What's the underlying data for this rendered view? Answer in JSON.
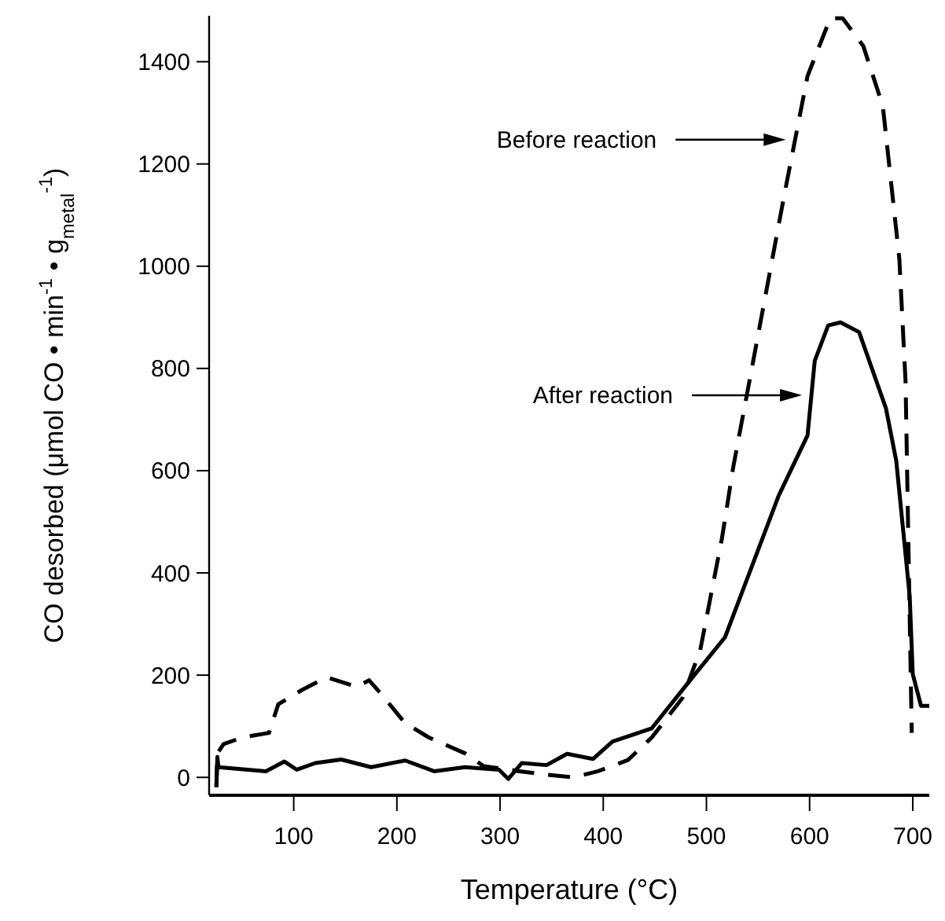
{
  "chart_data": {
    "type": "line",
    "xlabel": "Temperature (°C)",
    "ylabel": "CO desorbed (μmol CO • min$^{-1}$ • g$_{metal}$$^{-1}$)",
    "xlim": [
      18,
      716
    ],
    "ylim": [
      -35,
      1490
    ],
    "xticks": [
      100,
      200,
      300,
      400,
      500,
      600,
      700
    ],
    "yticks": [
      0,
      200,
      400,
      600,
      800,
      1000,
      1200,
      1400
    ],
    "grid": false,
    "series": [
      {
        "color": "#000000",
        "line_style": "dashed",
        "x": [
          25,
          26,
          32,
          50,
          76,
          85,
          108,
          132,
          161,
          173,
          184,
          208,
          231,
          266,
          284,
          319,
          342,
          371,
          395,
          424,
          447,
          477,
          494,
          515,
          526,
          544,
          576,
          598,
          620,
          632,
          652,
          671,
          687,
          693,
          699
        ],
        "values": [
          -19,
          47,
          65,
          78,
          87,
          143,
          171,
          196,
          177,
          190,
          165,
          106,
          78,
          47,
          22,
          12,
          6,
          0,
          12,
          34,
          78,
          156,
          249,
          467,
          607,
          800,
          1145,
          1372,
          1485,
          1485,
          1431,
          1313,
          1014,
          775,
          87
        ]
      },
      {
        "color": "#000000",
        "line_style": "solid",
        "x": [
          25,
          26,
          27,
          73,
          91,
          103,
          121,
          146,
          175,
          208,
          236,
          266,
          299,
          308,
          321,
          345,
          365,
          390,
          409,
          447,
          487,
          518,
          570,
          598,
          605,
          618,
          630,
          648,
          674,
          684,
          697,
          700,
          708,
          716
        ],
        "values": [
          -19,
          40,
          20,
          12,
          31,
          15,
          28,
          35,
          20,
          33,
          12,
          20,
          15,
          -3,
          28,
          24,
          46,
          36,
          70,
          96,
          197,
          274,
          551,
          669,
          815,
          884,
          890,
          871,
          722,
          619,
          355,
          202,
          140,
          140
        ]
      }
    ],
    "annotations": [
      "Before reaction",
      "After reaction"
    ]
  }
}
